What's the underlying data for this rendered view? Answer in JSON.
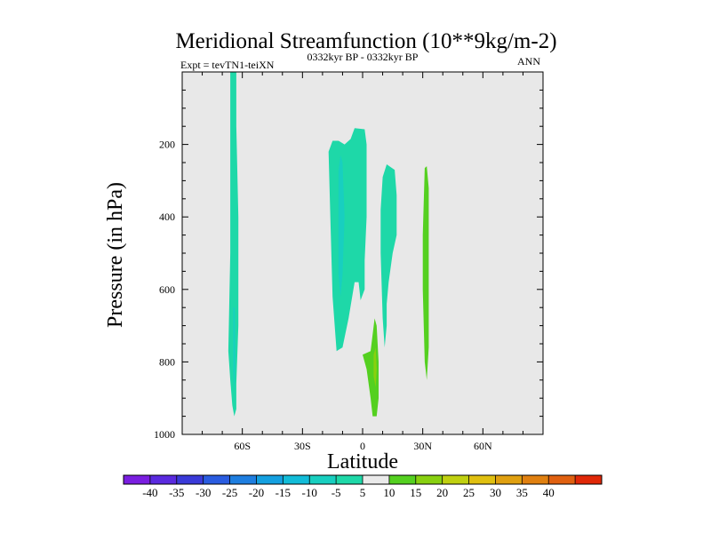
{
  "chart_data": {
    "type": "heatmap",
    "title": "Meridional Streamfunction (10**9kg/m-2)",
    "subtitle_left": "Expt = tevTN1-teiXN",
    "subtitle_center": "0332kyr BP - 0332kyr BP",
    "subtitle_right": "ANN",
    "xlabel": "Latitude",
    "ylabel": "Pressure (in hPa)",
    "xlim": [
      -90,
      90
    ],
    "ylim": [
      1000,
      0
    ],
    "x_ticks": [
      {
        "value": -60,
        "label": "60S"
      },
      {
        "value": -30,
        "label": "30S"
      },
      {
        "value": 0,
        "label": "0"
      },
      {
        "value": 30,
        "label": "30N"
      },
      {
        "value": 60,
        "label": "60N"
      }
    ],
    "y_ticks": [
      {
        "value": 200,
        "label": "200"
      },
      {
        "value": 400,
        "label": "400"
      },
      {
        "value": 600,
        "label": "600"
      },
      {
        "value": 800,
        "label": "800"
      },
      {
        "value": 1000,
        "label": "1000"
      }
    ],
    "y_minor_step": 50,
    "x_minor_step": 10,
    "background_color": "#e8e8e8",
    "colorbar": {
      "labels": [
        "-40",
        "-35",
        "-30",
        "-25",
        "-20",
        "-15",
        "-10",
        "-5",
        "5",
        "10",
        "15",
        "20",
        "25",
        "30",
        "35",
        "40"
      ],
      "colors": [
        "#7a1ee0",
        "#5a2adf",
        "#3a3ad8",
        "#2a5ce0",
        "#1e7ee0",
        "#14a0e0",
        "#12bcd8",
        "#18cfc0",
        "#1ed8a8",
        "#eaeaea",
        "#54d020",
        "#88d010",
        "#c0d010",
        "#e0c010",
        "#e0a010",
        "#e08010",
        "#e06010",
        "#e02808"
      ]
    },
    "regions": [
      {
        "name": "region-60s-column",
        "level": "-5",
        "color": "#1ed8a8",
        "lonlat": [
          [
            -66,
            0
          ],
          [
            -63,
            0
          ],
          [
            -63,
            150
          ],
          [
            -62,
            400
          ],
          [
            -62,
            700
          ],
          [
            -63,
            860
          ],
          [
            -63,
            930
          ],
          [
            -64,
            950
          ],
          [
            -65,
            920
          ],
          [
            -66,
            850
          ],
          [
            -67,
            770
          ],
          [
            -66,
            500
          ],
          [
            -66,
            200
          ]
        ]
      },
      {
        "name": "region-60s-core",
        "level": "-10",
        "color": "#18cfc0",
        "lonlat": [
          [
            -64.5,
            650
          ],
          [
            -63.8,
            650
          ],
          [
            -63.5,
            800
          ],
          [
            -64,
            880
          ],
          [
            -64.5,
            820
          ]
        ]
      },
      {
        "name": "region-15s-cell",
        "level": "-5",
        "color": "#1ed8a8",
        "lonlat": [
          [
            -17,
            220
          ],
          [
            -15,
            190
          ],
          [
            -12,
            190
          ],
          [
            -9,
            200
          ],
          [
            -6,
            185
          ],
          [
            -4,
            155
          ],
          [
            1,
            158
          ],
          [
            2,
            200
          ],
          [
            2,
            400
          ],
          [
            1,
            520
          ],
          [
            1,
            600
          ],
          [
            -1,
            630
          ],
          [
            -2,
            580
          ],
          [
            -4,
            580
          ],
          [
            -7,
            680
          ],
          [
            -10,
            760
          ],
          [
            -13,
            770
          ],
          [
            -15,
            620
          ],
          [
            -16,
            420
          ]
        ]
      },
      {
        "name": "region-15s-core",
        "level": "-10",
        "color": "#18cfc0",
        "lonlat": [
          [
            -12,
            270
          ],
          [
            -11,
            230
          ],
          [
            -10,
            250
          ],
          [
            -9,
            400
          ],
          [
            -10,
            560
          ],
          [
            -11,
            620
          ],
          [
            -12,
            560
          ],
          [
            -12,
            400
          ]
        ]
      },
      {
        "name": "region-10n-cell",
        "level": "-5",
        "color": "#1ed8a8",
        "lonlat": [
          [
            10,
            290
          ],
          [
            12,
            255
          ],
          [
            16,
            270
          ],
          [
            17,
            340
          ],
          [
            17,
            450
          ],
          [
            15,
            500
          ],
          [
            13,
            580
          ],
          [
            12,
            640
          ],
          [
            12,
            700
          ],
          [
            11,
            760
          ],
          [
            10,
            680
          ],
          [
            9,
            500
          ],
          [
            9,
            380
          ]
        ]
      },
      {
        "name": "region-30n-column",
        "level": "5",
        "color": "#54d020",
        "lonlat": [
          [
            31,
            265
          ],
          [
            32,
            260
          ],
          [
            33,
            320
          ],
          [
            33,
            600
          ],
          [
            33,
            760
          ],
          [
            32,
            850
          ],
          [
            31,
            800
          ],
          [
            30,
            600
          ],
          [
            30,
            450
          ]
        ]
      },
      {
        "name": "region-eq-lower",
        "level": "5",
        "color": "#54d020",
        "lonlat": [
          [
            0,
            780
          ],
          [
            4,
            770
          ],
          [
            6,
            680
          ],
          [
            7,
            700
          ],
          [
            8,
            800
          ],
          [
            8,
            900
          ],
          [
            7,
            950
          ],
          [
            5,
            950
          ],
          [
            4,
            900
          ],
          [
            2,
            820
          ]
        ]
      },
      {
        "name": "region-eq-lower-core",
        "level": "10",
        "color": "#88d010",
        "lonlat": [
          [
            5.5,
            780
          ],
          [
            6.5,
            760
          ],
          [
            7,
            820
          ],
          [
            6.5,
            870
          ],
          [
            5.5,
            840
          ]
        ]
      }
    ]
  }
}
